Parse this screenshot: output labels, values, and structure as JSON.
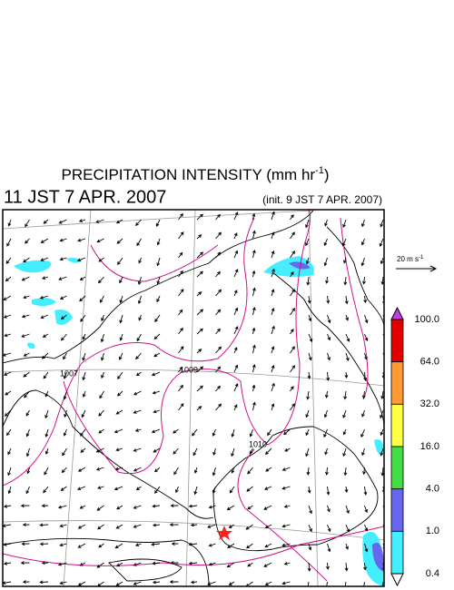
{
  "header": {
    "title": {
      "main": "PRECIPITATION INTENSITY (mm hr",
      "exponent": "-1",
      "close": ")"
    },
    "valid_time": "11 JST 7 APR. 2007",
    "init_time": "(init. 9 JST 7 APR. 2007)"
  },
  "map": {
    "isobar_labels": [
      "1007",
      "1009",
      "1010"
    ]
  },
  "wind_scale": {
    "label": "20 m s",
    "exponent": "-1"
  },
  "colorbar": {
    "labels": [
      "100.0",
      "64.0",
      "32.0",
      "16.0",
      "4.0",
      "1.0",
      "0.4"
    ],
    "colors": [
      "#e00000",
      "#ff9933",
      "#ffff44",
      "#44dd44",
      "#6666ee",
      "#44eeff"
    ],
    "over_color": "#c040e0",
    "under_color": "#ffffff"
  }
}
